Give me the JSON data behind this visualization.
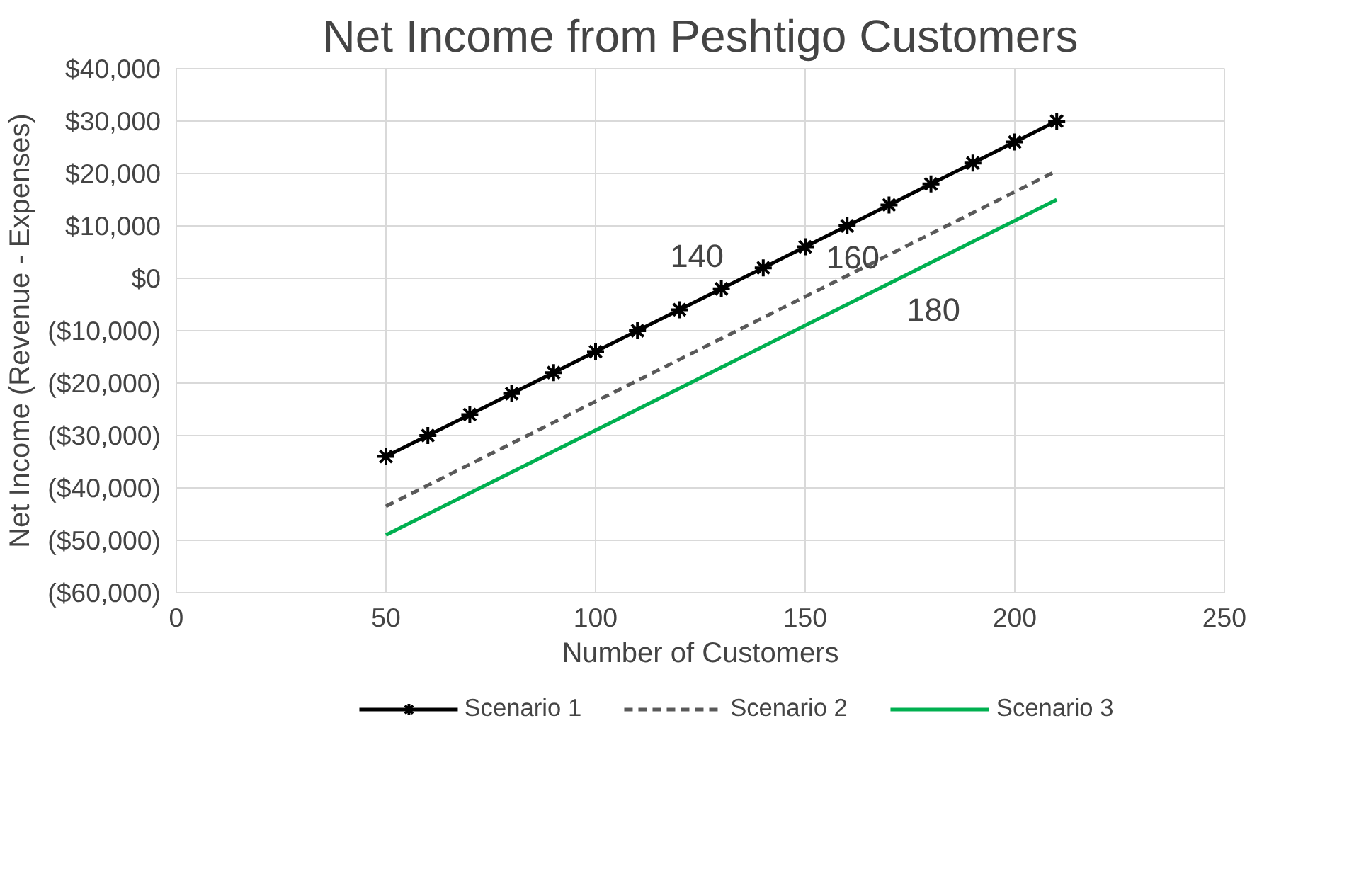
{
  "chart_data": {
    "type": "line",
    "title": "Net Income from Peshtigo Customers",
    "xlabel": "Number of Customers",
    "ylabel": "Net Income (Revenue - Expenses)",
    "xlim": [
      0,
      250
    ],
    "xticks": [
      0,
      50,
      100,
      150,
      200,
      250
    ],
    "ylim": [
      -60000,
      40000
    ],
    "yticks": [
      {
        "value": 40000,
        "label": "$40,000"
      },
      {
        "value": 30000,
        "label": "$30,000"
      },
      {
        "value": 20000,
        "label": "$20,000"
      },
      {
        "value": 10000,
        "label": "$10,000"
      },
      {
        "value": 0,
        "label": "$0"
      },
      {
        "value": -10000,
        "label": "($10,000)"
      },
      {
        "value": -20000,
        "label": "($20,000)"
      },
      {
        "value": -30000,
        "label": "($30,000)"
      },
      {
        "value": -40000,
        "label": "($40,000)"
      },
      {
        "value": -50000,
        "label": "($50,000)"
      },
      {
        "value": -60000,
        "label": "($60,000)"
      }
    ],
    "grid": true,
    "legend": "bottom",
    "series": [
      {
        "name": "Scenario 1",
        "color": "#000000",
        "marker": "cross",
        "line_style": "solid",
        "x": [
          50,
          60,
          70,
          80,
          90,
          100,
          110,
          120,
          130,
          140,
          150,
          160,
          170,
          180,
          190,
          200,
          210
        ],
        "values": [
          -34000,
          -30000,
          -26000,
          -22000,
          -18000,
          -14000,
          -10000,
          -6000,
          -2000,
          2000,
          6000,
          10000,
          14000,
          18000,
          22000,
          26000,
          30000
        ]
      },
      {
        "name": "Scenario 2",
        "color": "#595959",
        "marker": "none",
        "line_style": "dashed",
        "x": [
          50,
          210
        ],
        "values": [
          -43500,
          20500
        ]
      },
      {
        "name": "Scenario 3",
        "color": "#00b050",
        "marker": "none",
        "line_style": "solid",
        "x": [
          50,
          210
        ],
        "values": [
          -49000,
          15000
        ]
      }
    ],
    "annotations": [
      {
        "text": "140",
        "x": 135,
        "y": 0
      },
      {
        "text": "160",
        "x": 160,
        "y": 500
      },
      {
        "text": "180",
        "x": 172.5,
        "y": 0
      }
    ]
  }
}
